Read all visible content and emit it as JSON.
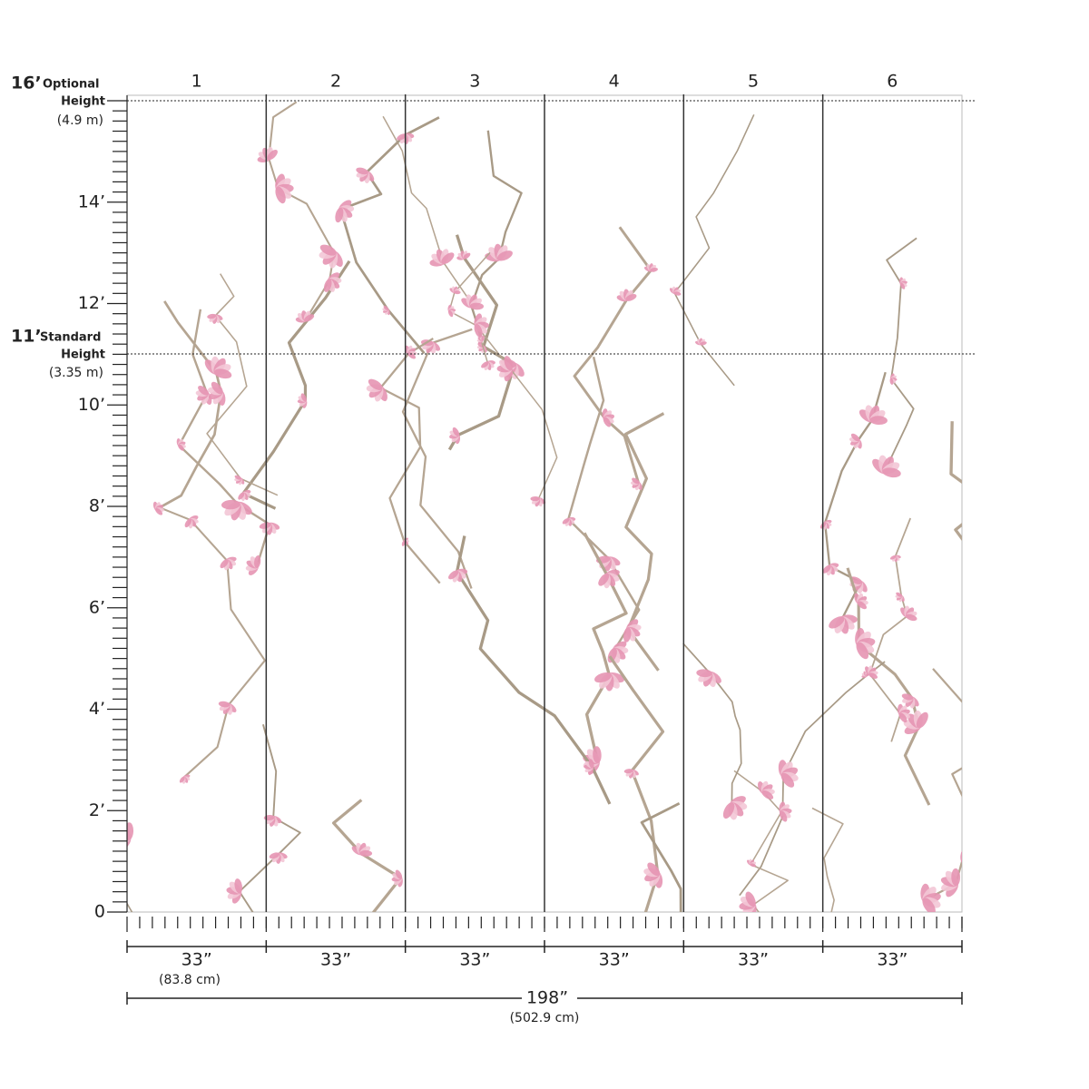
{
  "panels": [
    "1",
    "2",
    "3",
    "4",
    "5",
    "6"
  ],
  "height_labels": [
    "0",
    "2’",
    "4’",
    "6’",
    "8’",
    "10’",
    "12’",
    "14’"
  ],
  "optional_height": {
    "value": "16’",
    "label": "Optional",
    "label2": "Height",
    "metric": "(4.9 m)"
  },
  "standard_height": {
    "value": "11’",
    "label": "Standard",
    "label2": "Height",
    "metric": "(3.35 m)"
  },
  "panel_widths": [
    "33”",
    "33”",
    "33”",
    "33”",
    "33”",
    "33”"
  ],
  "panel_width_metric": "(83.8 cm)",
  "total_width": "198”",
  "total_width_metric": "(502.9 cm)"
}
